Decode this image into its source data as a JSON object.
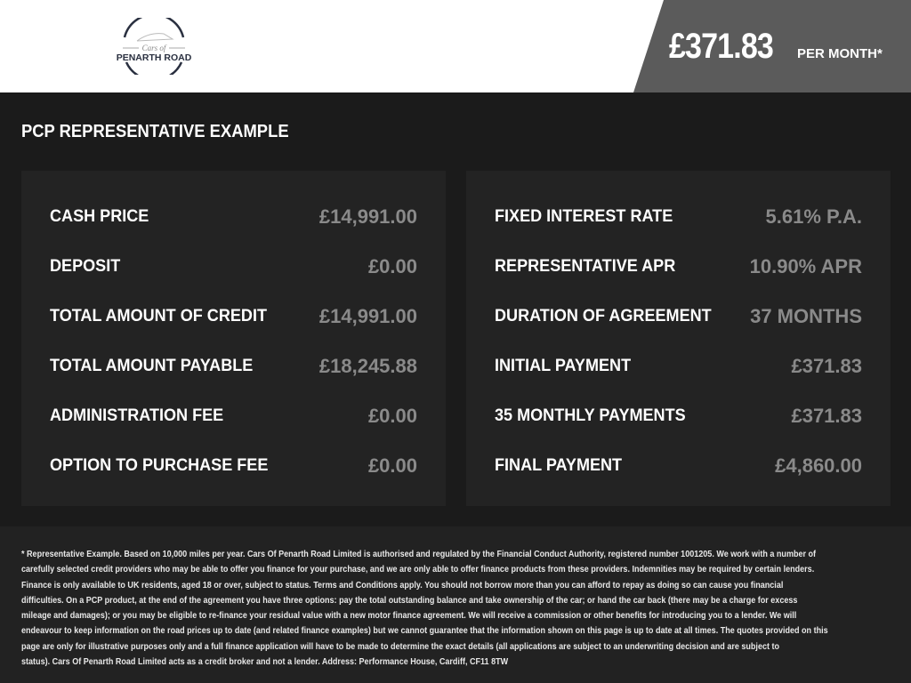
{
  "header": {
    "logo_text_top": "Cars of",
    "logo_text_bottom": "PENARTH ROAD",
    "price": "£371.83",
    "per_month": "PER MONTH*"
  },
  "section_title": "PCP REPRESENTATIVE EXAMPLE",
  "left_rows": [
    {
      "label": "CASH PRICE",
      "value": "£14,991.00"
    },
    {
      "label": "DEPOSIT",
      "value": "£0.00"
    },
    {
      "label": "TOTAL AMOUNT OF CREDIT",
      "value": "£14,991.00"
    },
    {
      "label": "TOTAL AMOUNT PAYABLE",
      "value": "£18,245.88"
    },
    {
      "label": "ADMINISTRATION FEE",
      "value": "£0.00"
    },
    {
      "label": "OPTION TO PURCHASE FEE",
      "value": "£0.00"
    }
  ],
  "right_rows": [
    {
      "label": "FIXED INTEREST RATE",
      "value": "5.61% P.A."
    },
    {
      "label": "REPRESENTATIVE APR",
      "value": "10.90% APR"
    },
    {
      "label": "DURATION OF AGREEMENT",
      "value": "37 MONTHS"
    },
    {
      "label": "INITIAL PAYMENT",
      "value": "£371.83"
    },
    {
      "label": "35 MONTHLY PAYMENTS",
      "value": "£371.83"
    },
    {
      "label": "FINAL PAYMENT",
      "value": "£4,860.00"
    }
  ],
  "disclaimer_lines": [
    "* Representative Example. Based on 10,000 miles per year. Cars Of Penarth Road Limited is authorised and regulated by the Financial Conduct Authority, registered number 1001205. We work with a number of",
    "carefully selected credit providers who may be able to offer you finance for your purchase, and we are only able to offer finance products from these providers. Indemnities may be required by certain lenders.",
    "Finance is only available to UK residents, aged 18 or over, subject to status. Terms and Conditions apply. You should not borrow more than you can afford to repay as doing so can cause you financial",
    "difficulties. On a PCP product, at the end of the agreement you have three options: pay the total outstanding balance and take ownership of the car; or hand the car back (there may be a charge for excess",
    "mileage and damages); or you may be eligible to re-finance your residual value with a new motor finance agreement. We will receive a commission or other benefits for introducing you to a lender. We will",
    "endeavour to keep information on the road prices up to date (and related finance examples) but we cannot guarantee that the information shown on this page is up to date at all times. The quotes provided on this",
    "page are only for illustrative purposes only and a full finance application will have to be made to determine the exact details (all applications are subject to an underwriting decision and are subject to",
    "status). Cars Of Penarth Road Limited acts as a credit broker and not a lender. Address: Performance House, Cardiff, CF11 8TW"
  ]
}
